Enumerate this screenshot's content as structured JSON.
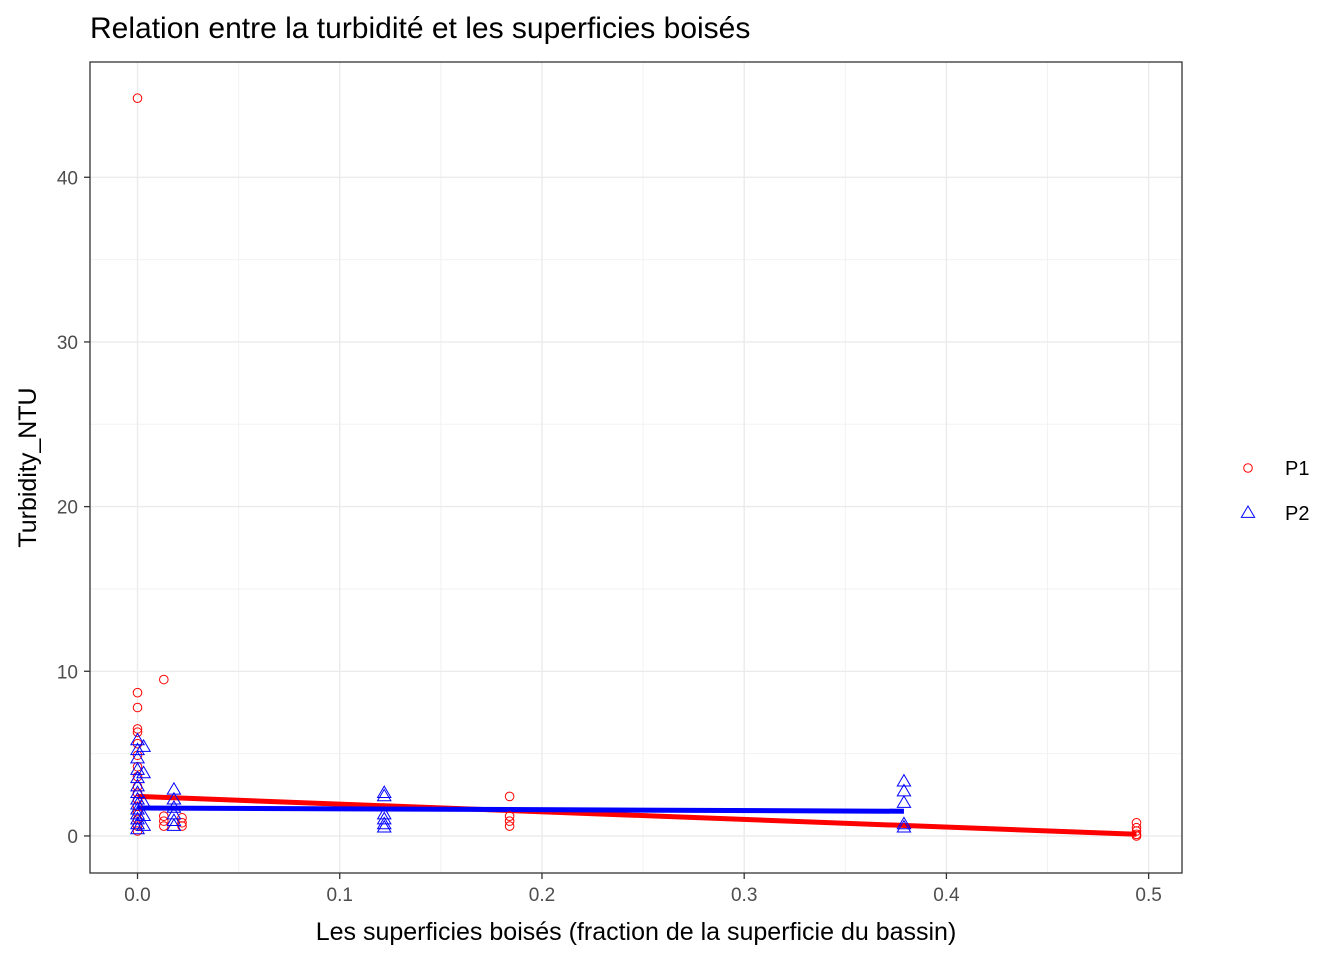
{
  "chart_data": {
    "type": "scatter",
    "title": "Relation entre la turbidité et les superficies boisés",
    "xlabel": "Les superficies boisés (fraction de la superficie du bassin)",
    "ylabel": "Turbidity_NTU",
    "xlim": [
      -0.0235,
      0.5165
    ],
    "ylim": [
      -2.25,
      47.0
    ],
    "x_ticks": [
      0.0,
      0.1,
      0.2,
      0.3,
      0.4,
      0.5
    ],
    "x_tick_labels": [
      "0.0",
      "0.1",
      "0.2",
      "0.3",
      "0.4",
      "0.5"
    ],
    "y_ticks": [
      0,
      10,
      20,
      30,
      40
    ],
    "y_tick_labels": [
      "0",
      "10",
      "20",
      "30",
      "40"
    ],
    "grid": true,
    "legend_position": "right",
    "series": [
      {
        "name": "P1",
        "color": "#ff0000",
        "marker": "circle",
        "points": [
          [
            0.0,
            44.8
          ],
          [
            0.0,
            8.7
          ],
          [
            0.0,
            7.8
          ],
          [
            0.0,
            6.5
          ],
          [
            0.0,
            6.3
          ],
          [
            0.0,
            5.6
          ],
          [
            0.0,
            4.9
          ],
          [
            0.0,
            4.2
          ],
          [
            0.0,
            3.6
          ],
          [
            0.0,
            3.0
          ],
          [
            0.0,
            2.6
          ],
          [
            0.0,
            2.2
          ],
          [
            0.0,
            1.8
          ],
          [
            0.0,
            1.4
          ],
          [
            0.0,
            1.0
          ],
          [
            0.0,
            0.6
          ],
          [
            0.0,
            0.3
          ],
          [
            0.013,
            9.5
          ],
          [
            0.013,
            1.2
          ],
          [
            0.013,
            0.9
          ],
          [
            0.013,
            0.6
          ],
          [
            0.022,
            1.1
          ],
          [
            0.022,
            0.8
          ],
          [
            0.022,
            0.6
          ],
          [
            0.184,
            2.4
          ],
          [
            0.184,
            1.2
          ],
          [
            0.184,
            0.9
          ],
          [
            0.184,
            0.6
          ],
          [
            0.494,
            0.8
          ],
          [
            0.494,
            0.5
          ],
          [
            0.494,
            0.3
          ],
          [
            0.494,
            0.1
          ],
          [
            0.494,
            0.0
          ]
        ],
        "fit_line": [
          [
            0.0,
            2.4
          ],
          [
            0.494,
            0.1
          ]
        ]
      },
      {
        "name": "P2",
        "color": "#0000ff",
        "marker": "triangle",
        "points": [
          [
            0.0,
            5.8
          ],
          [
            0.0,
            5.2
          ],
          [
            0.0,
            4.7
          ],
          [
            0.0,
            4.0
          ],
          [
            0.0,
            3.5
          ],
          [
            0.0,
            3.0
          ],
          [
            0.0,
            2.6
          ],
          [
            0.0,
            2.2
          ],
          [
            0.0,
            1.9
          ],
          [
            0.0,
            1.6
          ],
          [
            0.0,
            1.3
          ],
          [
            0.0,
            1.0
          ],
          [
            0.0,
            0.7
          ],
          [
            0.0,
            0.4
          ],
          [
            0.003,
            5.4
          ],
          [
            0.003,
            3.8
          ],
          [
            0.003,
            2.0
          ],
          [
            0.003,
            1.2
          ],
          [
            0.003,
            0.6
          ],
          [
            0.018,
            2.8
          ],
          [
            0.018,
            2.2
          ],
          [
            0.018,
            1.7
          ],
          [
            0.018,
            1.3
          ],
          [
            0.018,
            0.9
          ],
          [
            0.018,
            0.6
          ],
          [
            0.122,
            2.6
          ],
          [
            0.122,
            2.4
          ],
          [
            0.122,
            1.3
          ],
          [
            0.122,
            1.0
          ],
          [
            0.122,
            0.7
          ],
          [
            0.122,
            0.5
          ],
          [
            0.379,
            3.3
          ],
          [
            0.379,
            2.7
          ],
          [
            0.379,
            2.0
          ],
          [
            0.379,
            0.7
          ],
          [
            0.379,
            0.5
          ]
        ],
        "fit_line": [
          [
            0.0,
            1.7
          ],
          [
            0.379,
            1.5
          ]
        ]
      }
    ]
  }
}
